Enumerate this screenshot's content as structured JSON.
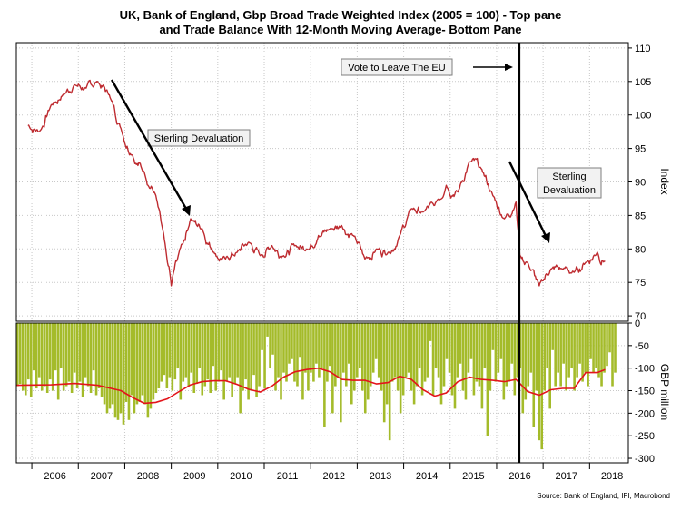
{
  "chart_data": [
    {
      "type": "line",
      "title": "UK, Bank of England, Gbp Broad Trade Weighted Index (2005 = 100) - Top pane",
      "subtitle": "and Trade Balance With 12-Month Moving Average- Bottom Pane",
      "ylabel": "Index",
      "ylim": [
        70,
        110
      ],
      "yticks": [
        110,
        105,
        100,
        95,
        90,
        85,
        80,
        75,
        70
      ],
      "grid": true,
      "series": [
        {
          "color": "#be2b30",
          "x": [
            "2005-12",
            "2006-03",
            "2006-06",
            "2006-09",
            "2006-12",
            "2007-03",
            "2007-06",
            "2007-09",
            "2007-12",
            "2008-03",
            "2008-06",
            "2008-09",
            "2008-12",
            "2009-01",
            "2009-03",
            "2009-06",
            "2009-09",
            "2009-12",
            "2010-03",
            "2010-06",
            "2010-09",
            "2010-12",
            "2011-03",
            "2011-06",
            "2011-09",
            "2011-12",
            "2012-03",
            "2012-06",
            "2012-09",
            "2012-12",
            "2013-03",
            "2013-06",
            "2013-09",
            "2013-12",
            "2014-03",
            "2014-06",
            "2014-09",
            "2014-12",
            "2015-03",
            "2015-06",
            "2015-09",
            "2015-12",
            "2016-03",
            "2016-06",
            "2016-07",
            "2016-09",
            "2016-12",
            "2017-03",
            "2017-06",
            "2017-09",
            "2017-12",
            "2018-03",
            "2018-05"
          ],
          "values": [
            98.5,
            97.5,
            101.5,
            103,
            104.5,
            104,
            105,
            103,
            98,
            94,
            91.5,
            88,
            78,
            74.5,
            79.5,
            84.5,
            83,
            79.5,
            78.5,
            79.5,
            81,
            79,
            80.5,
            79,
            80.5,
            80,
            82,
            83,
            83.5,
            82,
            78.5,
            80,
            79.5,
            82,
            86,
            85.5,
            86.5,
            89.5,
            88.5,
            93,
            92,
            88,
            84.5,
            87,
            79,
            78,
            74.5,
            77,
            77,
            76.5,
            78,
            79.5,
            78.2
          ]
        }
      ],
      "annotations": [
        {
          "text": "Vote to Leave The EU",
          "x": "2016-06"
        },
        {
          "text": "Sterling Devaluation",
          "x": "2008-06"
        },
        {
          "text": "Sterling",
          "x": "2016-12"
        },
        {
          "text": "Devaluation",
          "x": "2016-12"
        }
      ],
      "vline": {
        "x": "2016-06"
      }
    },
    {
      "type": "bar",
      "ylabel": "GBP million",
      "ylim": [
        -310,
        0
      ],
      "yticks": [
        0,
        -50,
        -100,
        -150,
        -200,
        -250,
        -300
      ],
      "grid": true,
      "bar_color": "#a4bb2a",
      "ma_color": "#e3141b",
      "xticks": [
        "2006",
        "2007",
        "2008",
        "2009",
        "2010",
        "2011",
        "2012",
        "2013",
        "2014",
        "2015",
        "2016",
        "2017",
        "2018"
      ],
      "xstart": "2005-09",
      "xend": "2018-11",
      "values": [
        -140,
        -135,
        -150,
        -160,
        -125,
        -165,
        -105,
        -145,
        -120,
        -150,
        -140,
        -155,
        -125,
        -150,
        -105,
        -170,
        -100,
        -150,
        -140,
        -130,
        -155,
        -110,
        -145,
        -130,
        -165,
        -120,
        -140,
        -155,
        -105,
        -160,
        -145,
        -165,
        -180,
        -200,
        -190,
        -180,
        -210,
        -215,
        -200,
        -225,
        -175,
        -215,
        -160,
        -200,
        -180,
        -175,
        -160,
        -180,
        -210,
        -190,
        -170,
        -155,
        -145,
        -130,
        -115,
        -145,
        -120,
        -150,
        -125,
        -100,
        -170,
        -130,
        -120,
        -140,
        -110,
        -155,
        -135,
        -100,
        -160,
        -140,
        -125,
        -155,
        -95,
        -150,
        -130,
        -105,
        -170,
        -130,
        -120,
        -165,
        -135,
        -120,
        -200,
        -150,
        -125,
        -170,
        -150,
        -115,
        -165,
        -140,
        -60,
        -145,
        -30,
        -100,
        -70,
        -150,
        -120,
        -170,
        -110,
        -130,
        -90,
        -80,
        -130,
        -140,
        -75,
        -170,
        -110,
        -150,
        -110,
        -130,
        -90,
        -120,
        -100,
        -230,
        -130,
        -95,
        -200,
        -140,
        -120,
        -220,
        -110,
        -140,
        -90,
        -180,
        -150,
        -120,
        -100,
        -150,
        -200,
        -170,
        -140,
        -110,
        -80,
        -120,
        -150,
        -220,
        -180,
        -260,
        -130,
        -120,
        -150,
        -200,
        -160,
        -120,
        -110,
        -150,
        -180,
        -140,
        -100,
        -160,
        -130,
        -120,
        -40,
        -160,
        -100,
        -120,
        -180,
        -140,
        -80,
        -110,
        -160,
        -190,
        -120,
        -90,
        -150,
        -170,
        -110,
        -80,
        -160,
        -130,
        -140,
        -190,
        -100,
        -250,
        -150,
        -60,
        -130,
        -110,
        -80,
        -170,
        -140,
        -130,
        -90,
        -160,
        -120,
        -100,
        -200,
        -170,
        -140,
        -110,
        -230,
        -150,
        -260,
        -280,
        -150,
        -100,
        -190,
        -60,
        -140,
        -110,
        -140,
        -90,
        -150,
        -120,
        -100,
        -150,
        -120,
        -90,
        -130,
        -110,
        -140,
        -80,
        -110,
        -100,
        -120,
        -140,
        -110,
        -95,
        -65,
        -140,
        -110
      ],
      "moving_average": [
        {
          "x": "2005-09",
          "value": -138
        },
        {
          "x": "2006-06",
          "value": -137
        },
        {
          "x": "2006-12",
          "value": -134
        },
        {
          "x": "2007-06",
          "value": -138
        },
        {
          "x": "2007-12",
          "value": -150
        },
        {
          "x": "2008-03",
          "value": -165
        },
        {
          "x": "2008-06",
          "value": -178
        },
        {
          "x": "2008-09",
          "value": -176
        },
        {
          "x": "2008-12",
          "value": -168
        },
        {
          "x": "2009-03",
          "value": -152
        },
        {
          "x": "2009-06",
          "value": -137
        },
        {
          "x": "2009-09",
          "value": -130
        },
        {
          "x": "2009-12",
          "value": -128
        },
        {
          "x": "2010-03",
          "value": -128
        },
        {
          "x": "2010-06",
          "value": -136
        },
        {
          "x": "2010-09",
          "value": -147
        },
        {
          "x": "2010-12",
          "value": -153
        },
        {
          "x": "2011-03",
          "value": -140
        },
        {
          "x": "2011-06",
          "value": -120
        },
        {
          "x": "2011-09",
          "value": -108
        },
        {
          "x": "2011-12",
          "value": -103
        },
        {
          "x": "2012-03",
          "value": -100
        },
        {
          "x": "2012-06",
          "value": -108
        },
        {
          "x": "2012-09",
          "value": -125
        },
        {
          "x": "2012-12",
          "value": -127
        },
        {
          "x": "2013-03",
          "value": -127
        },
        {
          "x": "2013-06",
          "value": -135
        },
        {
          "x": "2013-09",
          "value": -132
        },
        {
          "x": "2013-12",
          "value": -118
        },
        {
          "x": "2014-03",
          "value": -125
        },
        {
          "x": "2014-06",
          "value": -148
        },
        {
          "x": "2014-09",
          "value": -162
        },
        {
          "x": "2014-12",
          "value": -155
        },
        {
          "x": "2015-03",
          "value": -130
        },
        {
          "x": "2015-06",
          "value": -120
        },
        {
          "x": "2015-09",
          "value": -125
        },
        {
          "x": "2015-12",
          "value": -127
        },
        {
          "x": "2016-03",
          "value": -130
        },
        {
          "x": "2016-06",
          "value": -125
        },
        {
          "x": "2016-09",
          "value": -152
        },
        {
          "x": "2016-12",
          "value": -160
        },
        {
          "x": "2017-03",
          "value": -148
        },
        {
          "x": "2017-06",
          "value": -145
        },
        {
          "x": "2017-09",
          "value": -145
        },
        {
          "x": "2017-12",
          "value": -110
        },
        {
          "x": "2018-03",
          "value": -110
        },
        {
          "x": "2018-05",
          "value": -103
        }
      ]
    }
  ],
  "source": "Source: Bank of England, IFI, Macrobond"
}
